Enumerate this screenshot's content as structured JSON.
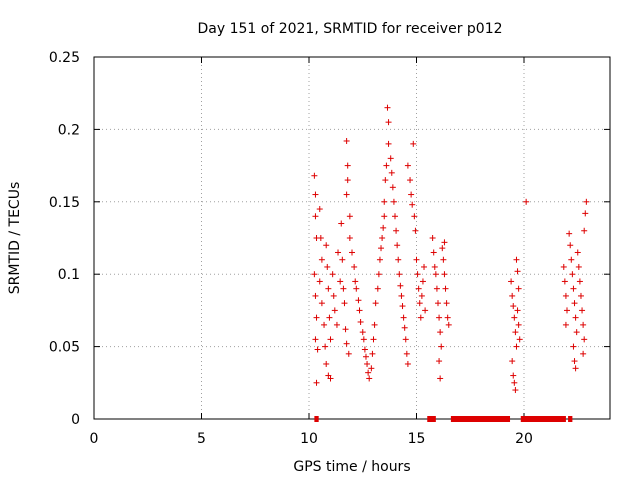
{
  "chart_data": {
    "type": "scatter",
    "title": "Day 151 of 2021, SRMTID for receiver p012",
    "xlabel": "GPS time / hours",
    "ylabel": "SRMTID / TECUs",
    "xlim": [
      0,
      24
    ],
    "ylim": [
      0,
      0.25
    ],
    "grid": true,
    "color": "#dd0000",
    "marker": "+",
    "x_ticks": [
      "0",
      "5",
      "10",
      "15",
      "20"
    ],
    "y_ticks": [
      "0",
      "0.05",
      "0.1",
      "0.15",
      "0.2",
      "0.25"
    ],
    "series": [
      {
        "name": "SRMTID",
        "points": [
          [
            10.25,
            0.168
          ],
          [
            10.3,
            0.155
          ],
          [
            10.3,
            0.14
          ],
          [
            10.35,
            0.125
          ],
          [
            10.25,
            0.1
          ],
          [
            10.3,
            0.085
          ],
          [
            10.35,
            0.07
          ],
          [
            10.3,
            0.055
          ],
          [
            10.4,
            0.048
          ],
          [
            10.35,
            0.025
          ],
          [
            10.5,
            0.145
          ],
          [
            10.55,
            0.125
          ],
          [
            10.6,
            0.11
          ],
          [
            10.5,
            0.095
          ],
          [
            10.6,
            0.08
          ],
          [
            10.7,
            0.065
          ],
          [
            10.75,
            0.05
          ],
          [
            10.8,
            0.12
          ],
          [
            10.85,
            0.105
          ],
          [
            10.9,
            0.09
          ],
          [
            10.95,
            0.07
          ],
          [
            11.0,
            0.055
          ],
          [
            10.8,
            0.038
          ],
          [
            10.9,
            0.03
          ],
          [
            11.0,
            0.028
          ],
          [
            11.1,
            0.1
          ],
          [
            11.15,
            0.085
          ],
          [
            11.2,
            0.075
          ],
          [
            11.3,
            0.065
          ],
          [
            11.35,
            0.115
          ],
          [
            11.45,
            0.095
          ],
          [
            11.5,
            0.135
          ],
          [
            11.55,
            0.11
          ],
          [
            11.6,
            0.09
          ],
          [
            11.65,
            0.08
          ],
          [
            11.7,
            0.062
          ],
          [
            11.75,
            0.052
          ],
          [
            11.85,
            0.045
          ],
          [
            11.75,
            0.192
          ],
          [
            11.8,
            0.175
          ],
          [
            11.8,
            0.165
          ],
          [
            11.75,
            0.155
          ],
          [
            11.9,
            0.14
          ],
          [
            11.9,
            0.125
          ],
          [
            12.0,
            0.115
          ],
          [
            12.1,
            0.105
          ],
          [
            12.15,
            0.095
          ],
          [
            12.2,
            0.09
          ],
          [
            12.3,
            0.082
          ],
          [
            12.35,
            0.075
          ],
          [
            12.4,
            0.067
          ],
          [
            12.5,
            0.06
          ],
          [
            12.55,
            0.055
          ],
          [
            12.6,
            0.048
          ],
          [
            12.65,
            0.043
          ],
          [
            12.7,
            0.038
          ],
          [
            12.75,
            0.032
          ],
          [
            12.8,
            0.028
          ],
          [
            12.9,
            0.035
          ],
          [
            12.95,
            0.045
          ],
          [
            13.0,
            0.055
          ],
          [
            13.05,
            0.065
          ],
          [
            13.1,
            0.08
          ],
          [
            13.2,
            0.09
          ],
          [
            13.25,
            0.1
          ],
          [
            13.3,
            0.11
          ],
          [
            13.35,
            0.118
          ],
          [
            13.4,
            0.125
          ],
          [
            13.45,
            0.132
          ],
          [
            13.5,
            0.14
          ],
          [
            13.5,
            0.15
          ],
          [
            13.55,
            0.165
          ],
          [
            13.6,
            0.175
          ],
          [
            13.65,
            0.215
          ],
          [
            13.7,
            0.205
          ],
          [
            13.7,
            0.19
          ],
          [
            13.8,
            0.18
          ],
          [
            13.85,
            0.17
          ],
          [
            13.9,
            0.16
          ],
          [
            13.95,
            0.15
          ],
          [
            14.0,
            0.14
          ],
          [
            14.05,
            0.13
          ],
          [
            14.1,
            0.12
          ],
          [
            14.15,
            0.11
          ],
          [
            14.2,
            0.1
          ],
          [
            14.25,
            0.092
          ],
          [
            14.3,
            0.085
          ],
          [
            14.35,
            0.078
          ],
          [
            14.4,
            0.07
          ],
          [
            14.45,
            0.063
          ],
          [
            14.5,
            0.055
          ],
          [
            14.55,
            0.045
          ],
          [
            14.6,
            0.038
          ],
          [
            14.6,
            0.175
          ],
          [
            14.7,
            0.165
          ],
          [
            14.75,
            0.155
          ],
          [
            14.8,
            0.148
          ],
          [
            14.85,
            0.19
          ],
          [
            14.9,
            0.14
          ],
          [
            14.95,
            0.13
          ],
          [
            15.0,
            0.11
          ],
          [
            15.05,
            0.1
          ],
          [
            15.1,
            0.09
          ],
          [
            15.15,
            0.08
          ],
          [
            15.2,
            0.07
          ],
          [
            15.25,
            0.085
          ],
          [
            15.3,
            0.095
          ],
          [
            15.35,
            0.105
          ],
          [
            15.4,
            0.075
          ],
          [
            15.75,
            0.125
          ],
          [
            15.8,
            0.115
          ],
          [
            15.85,
            0.105
          ],
          [
            15.9,
            0.1
          ],
          [
            15.95,
            0.09
          ],
          [
            16.0,
            0.08
          ],
          [
            16.05,
            0.07
          ],
          [
            16.1,
            0.06
          ],
          [
            16.15,
            0.05
          ],
          [
            16.05,
            0.04
          ],
          [
            16.1,
            0.028
          ],
          [
            16.2,
            0.118
          ],
          [
            16.25,
            0.11
          ],
          [
            16.3,
            0.1
          ],
          [
            16.35,
            0.09
          ],
          [
            16.4,
            0.08
          ],
          [
            16.45,
            0.07
          ],
          [
            16.5,
            0.065
          ],
          [
            16.3,
            0.122
          ],
          [
            19.4,
            0.095
          ],
          [
            19.45,
            0.085
          ],
          [
            19.5,
            0.078
          ],
          [
            19.55,
            0.07
          ],
          [
            19.6,
            0.06
          ],
          [
            19.65,
            0.05
          ],
          [
            19.45,
            0.04
          ],
          [
            19.5,
            0.03
          ],
          [
            19.55,
            0.025
          ],
          [
            19.6,
            0.02
          ],
          [
            19.65,
            0.11
          ],
          [
            19.7,
            0.102
          ],
          [
            19.75,
            0.09
          ],
          [
            19.7,
            0.075
          ],
          [
            19.75,
            0.065
          ],
          [
            19.8,
            0.055
          ],
          [
            20.1,
            0.15
          ],
          [
            21.85,
            0.105
          ],
          [
            21.9,
            0.095
          ],
          [
            21.95,
            0.085
          ],
          [
            22.0,
            0.075
          ],
          [
            21.95,
            0.065
          ],
          [
            22.1,
            0.128
          ],
          [
            22.15,
            0.12
          ],
          [
            22.2,
            0.11
          ],
          [
            22.25,
            0.1
          ],
          [
            22.3,
            0.09
          ],
          [
            22.35,
            0.08
          ],
          [
            22.4,
            0.07
          ],
          [
            22.45,
            0.06
          ],
          [
            22.3,
            0.05
          ],
          [
            22.35,
            0.04
          ],
          [
            22.4,
            0.035
          ],
          [
            22.5,
            0.115
          ],
          [
            22.55,
            0.105
          ],
          [
            22.6,
            0.095
          ],
          [
            22.65,
            0.085
          ],
          [
            22.7,
            0.075
          ],
          [
            22.75,
            0.065
          ],
          [
            22.8,
            0.055
          ],
          [
            22.75,
            0.045
          ],
          [
            22.8,
            0.13
          ],
          [
            22.85,
            0.142
          ],
          [
            22.9,
            0.15
          ]
        ]
      }
    ],
    "zero_bars": [
      [
        10.25,
        10.45
      ],
      [
        15.5,
        15.9
      ],
      [
        16.6,
        19.35
      ],
      [
        19.85,
        21.95
      ],
      [
        22.05,
        22.25
      ]
    ]
  }
}
